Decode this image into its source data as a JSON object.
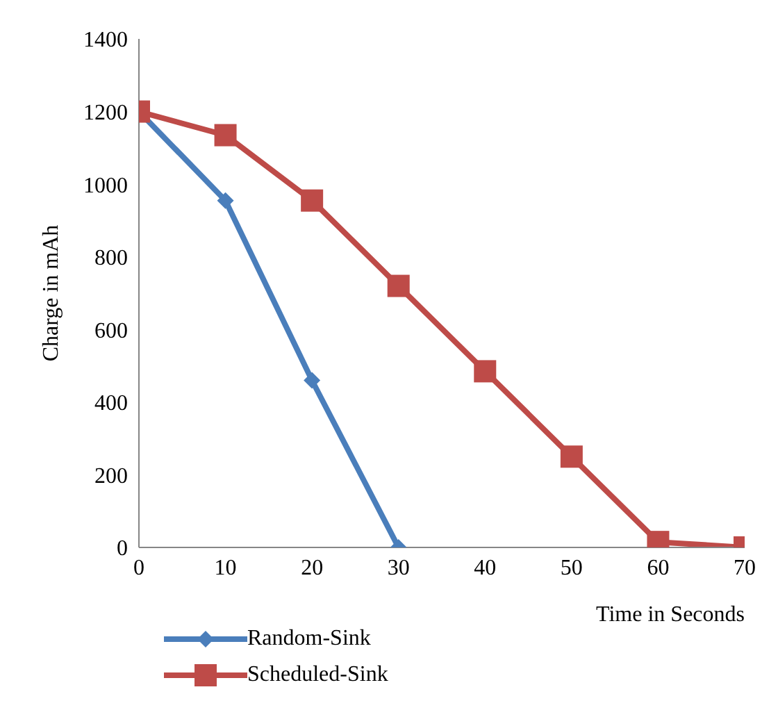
{
  "chart_data": {
    "type": "line",
    "xlabel": "Time in Seconds",
    "ylabel": "Charge in mAh",
    "xlim": [
      0,
      70
    ],
    "xticks": [
      0,
      10,
      20,
      30,
      40,
      50,
      60,
      70
    ],
    "ylim": [
      0,
      1400
    ],
    "yticks": [
      0,
      200,
      400,
      600,
      800,
      1000,
      1200,
      1400
    ],
    "grid": false,
    "legend": "bottom left",
    "series": [
      {
        "name": "Random-Sink",
        "color": "#4a7ebb",
        "marker": "diamond",
        "x": [
          0,
          10,
          20,
          30
        ],
        "values": [
          1200,
          955,
          460,
          0
        ]
      },
      {
        "name": "Scheduled-Sink",
        "color": "#be4b48",
        "marker": "square",
        "x": [
          0,
          10,
          20,
          30,
          40,
          50,
          60,
          70
        ],
        "values": [
          1200,
          1135,
          955,
          720,
          485,
          250,
          15,
          0
        ]
      }
    ]
  }
}
